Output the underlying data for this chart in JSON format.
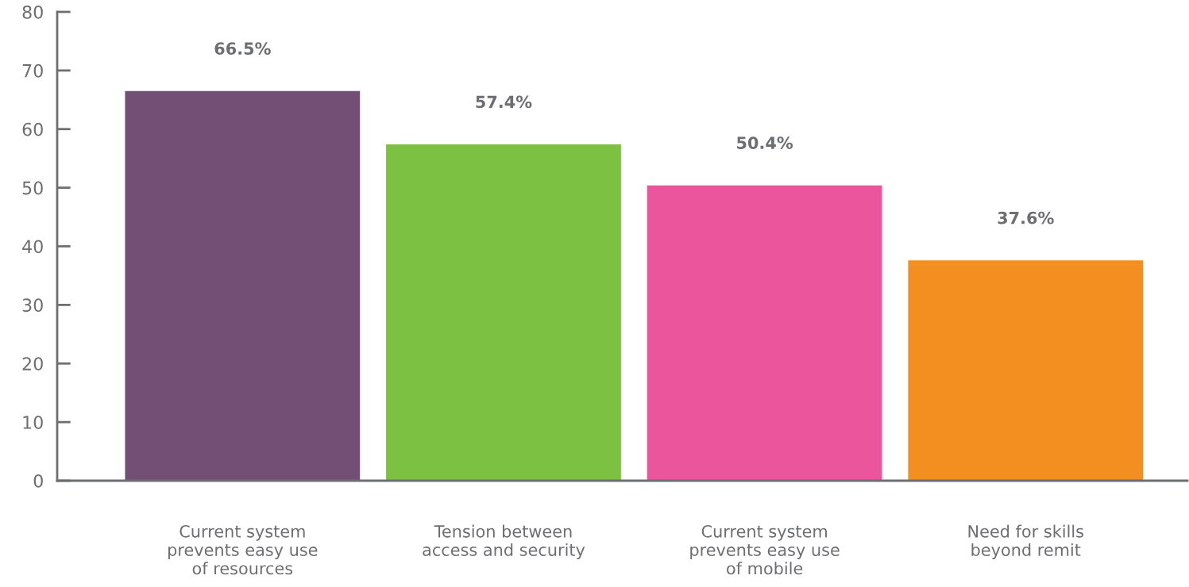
{
  "chart_data": {
    "type": "bar",
    "categories": [
      "Current system\nprevents easy use\nof resources",
      "Tension between\naccess and security",
      "Current system\nprevents easy use\nof mobile",
      "Need for skills\nbeyond remit"
    ],
    "values": [
      66.5,
      57.4,
      50.4,
      37.6
    ],
    "colors": [
      "#734f76",
      "#7cc142",
      "#ea559b",
      "#f28f20"
    ],
    "value_labels": [
      "66.5%",
      "57.4%",
      "50.4%",
      "37.6%"
    ],
    "ylim": [
      0,
      80
    ],
    "yticks": [
      0,
      10,
      20,
      30,
      40,
      50,
      60,
      70,
      80
    ],
    "grid": false,
    "legend": false
  }
}
